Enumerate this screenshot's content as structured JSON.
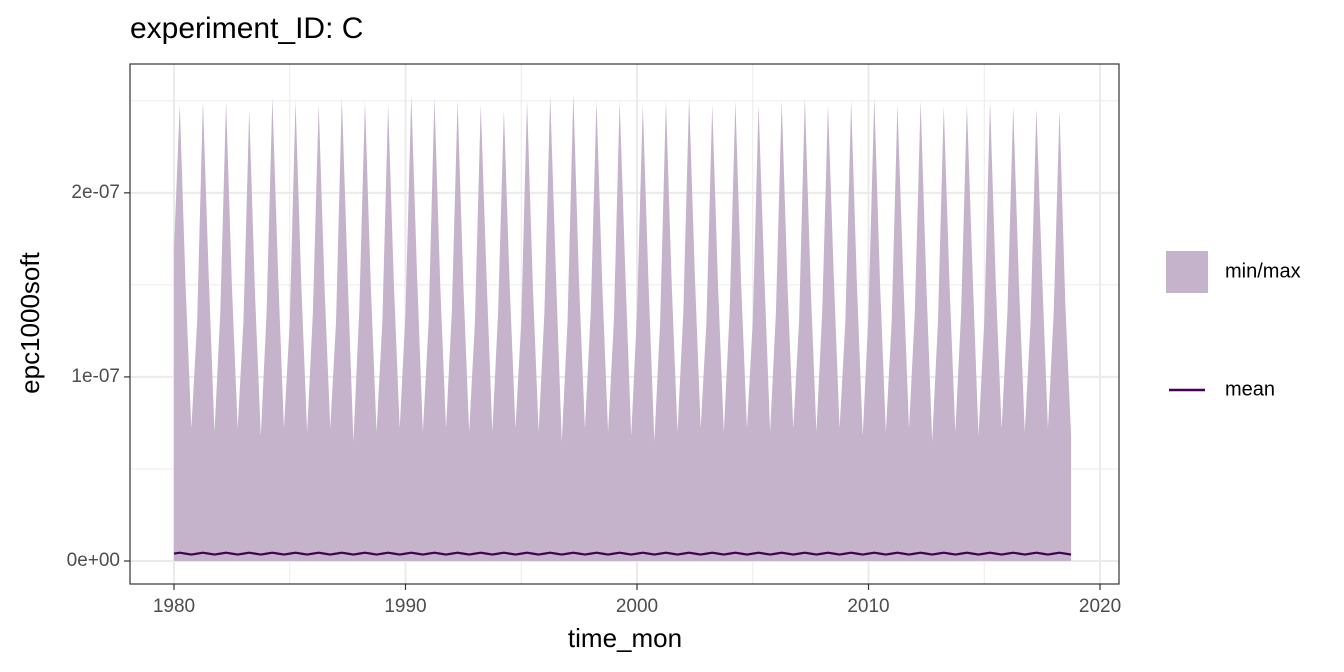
{
  "chart_data": {
    "type": "ribbon-line",
    "title": "experiment_ID: C",
    "x_label": "time_mon",
    "y_label": "epc1000soft",
    "xlim": [
      1978.1,
      2020.82
    ],
    "xticks": [
      1980,
      1990,
      2000,
      2010,
      2020
    ],
    "xminor": [
      1985,
      1995,
      2005,
      2015
    ],
    "ylim": [
      -1.25e-08,
      2.7e-07
    ],
    "yticks": [
      {
        "value": 0,
        "label": "0e+00"
      },
      {
        "value": 1e-07,
        "label": "1e-07"
      },
      {
        "value": 2e-07,
        "label": "2e-07"
      }
    ],
    "yminor": [
      5e-08,
      1.5e-07,
      2.5e-07
    ],
    "grid": true,
    "x": [
      1980,
      1980.25,
      1980.5,
      1980.75,
      1981,
      1981.25,
      1981.5,
      1981.75,
      1982,
      1982.25,
      1982.5,
      1982.75,
      1983,
      1983.25,
      1983.5,
      1983.75,
      1984,
      1984.25,
      1984.5,
      1984.75,
      1985,
      1985.25,
      1985.5,
      1985.75,
      1986,
      1986.25,
      1986.5,
      1986.75,
      1987,
      1987.25,
      1987.5,
      1987.75,
      1988,
      1988.25,
      1988.5,
      1988.75,
      1989,
      1989.25,
      1989.5,
      1989.75,
      1990,
      1990.25,
      1990.5,
      1990.75,
      1991,
      1991.25,
      1991.5,
      1991.75,
      1992,
      1992.25,
      1992.5,
      1992.75,
      1993,
      1993.25,
      1993.5,
      1993.75,
      1994,
      1994.25,
      1994.5,
      1994.75,
      1995,
      1995.25,
      1995.5,
      1995.75,
      1996,
      1996.25,
      1996.5,
      1996.75,
      1997,
      1997.25,
      1997.5,
      1997.75,
      1998,
      1998.25,
      1998.5,
      1998.75,
      1999,
      1999.25,
      1999.5,
      1999.75,
      2000,
      2000.25,
      2000.5,
      2000.75,
      2001,
      2001.25,
      2001.5,
      2001.75,
      2002,
      2002.25,
      2002.5,
      2002.75,
      2003,
      2003.25,
      2003.5,
      2003.75,
      2004,
      2004.25,
      2004.5,
      2004.75,
      2005,
      2005.25,
      2005.5,
      2005.75,
      2006,
      2006.25,
      2006.5,
      2006.75,
      2007,
      2007.25,
      2007.5,
      2007.75,
      2008,
      2008.25,
      2008.5,
      2008.75,
      2009,
      2009.25,
      2009.5,
      2009.75,
      2010,
      2010.25,
      2010.5,
      2010.75,
      2011,
      2011.25,
      2011.5,
      2011.75,
      2012,
      2012.25,
      2012.5,
      2012.75,
      2013,
      2013.25,
      2013.5,
      2013.75,
      2014,
      2014.25,
      2014.5,
      2014.75,
      2015,
      2015.25,
      2015.5,
      2015.75,
      2016,
      2016.25,
      2016.5,
      2016.75,
      2017,
      2017.25,
      2017.5,
      2017.75,
      2018,
      2018.25,
      2018.5,
      2018.75
    ],
    "series": [
      {
        "name": "min/max",
        "kind": "ribbon",
        "color": "#c5b3cc",
        "upper": [
          1.7e-07,
          2.48e-07,
          1.5e-07,
          7.2e-08,
          1.3e-07,
          2.5e-07,
          1.55e-07,
          7e-08,
          1.35e-07,
          2.5e-07,
          1.5e-07,
          7.2e-08,
          1.3e-07,
          2.45e-07,
          1.45e-07,
          6.8e-08,
          1.35e-07,
          2.52e-07,
          1.55e-07,
          7.2e-08,
          1.3e-07,
          2.5e-07,
          1.5e-07,
          7e-08,
          1.35e-07,
          2.48e-07,
          1.5e-07,
          7.2e-08,
          1.3e-07,
          2.52e-07,
          1.55e-07,
          6.5e-08,
          1.35e-07,
          2.5e-07,
          1.5e-07,
          7e-08,
          1.3e-07,
          2.48e-07,
          1.5e-07,
          7.2e-08,
          1.35e-07,
          2.53e-07,
          1.55e-07,
          7e-08,
          1.3e-07,
          2.52e-07,
          1.5e-07,
          7.2e-08,
          1.35e-07,
          2.5e-07,
          1.5e-07,
          7e-08,
          1.3e-07,
          2.48e-07,
          1.55e-07,
          7e-08,
          1.35e-07,
          2.45e-07,
          1.5e-07,
          7.2e-08,
          1.3e-07,
          2.5e-07,
          1.5e-07,
          7e-08,
          1.35e-07,
          2.53e-07,
          1.55e-07,
          6.5e-08,
          1.3e-07,
          2.54e-07,
          1.5e-07,
          7.2e-08,
          1.35e-07,
          2.5e-07,
          1.5e-07,
          7e-08,
          1.3e-07,
          2.5e-07,
          1.55e-07,
          6.8e-08,
          1.35e-07,
          2.48e-07,
          1.5e-07,
          6.5e-08,
          1.3e-07,
          2.5e-07,
          1.5e-07,
          7e-08,
          1.35e-07,
          2.52e-07,
          1.55e-07,
          7.2e-08,
          1.3e-07,
          2.48e-07,
          1.5e-07,
          7e-08,
          1.35e-07,
          2.5e-07,
          1.5e-07,
          7.2e-08,
          1.3e-07,
          2.48e-07,
          1.55e-07,
          7e-08,
          1.35e-07,
          2.5e-07,
          1.5e-07,
          7.2e-08,
          1.3e-07,
          2.52e-07,
          1.5e-07,
          7e-08,
          1.35e-07,
          2.48e-07,
          1.55e-07,
          7.2e-08,
          1.3e-07,
          2.5e-07,
          1.5e-07,
          6.8e-08,
          1.35e-07,
          2.52e-07,
          1.5e-07,
          7e-08,
          1.3e-07,
          2.48e-07,
          1.55e-07,
          7.2e-08,
          1.35e-07,
          2.5e-07,
          1.5e-07,
          6.5e-08,
          1.3e-07,
          2.47e-07,
          1.5e-07,
          7e-08,
          1.35e-07,
          2.48e-07,
          1.55e-07,
          6.8e-08,
          1.3e-07,
          2.5e-07,
          1.5e-07,
          7.2e-08,
          1.35e-07,
          2.47e-07,
          1.5e-07,
          7e-08,
          1.3e-07,
          2.46e-07,
          1.55e-07,
          7.2e-08,
          1.35e-07,
          2.45e-07,
          1.4e-07,
          6.8e-08
        ],
        "lower": [
          0,
          0,
          0,
          0,
          0,
          0,
          0,
          0,
          0,
          0,
          0,
          0,
          0,
          0,
          0,
          0,
          0,
          0,
          0,
          0,
          0,
          0,
          0,
          0,
          0,
          0,
          0,
          0,
          0,
          0,
          0,
          0,
          0,
          0,
          0,
          0,
          0,
          0,
          0,
          0,
          0,
          0,
          0,
          0,
          0,
          0,
          0,
          0,
          0,
          0,
          0,
          0,
          0,
          0,
          0,
          0,
          0,
          0,
          0,
          0,
          0,
          0,
          0,
          0,
          0,
          0,
          0,
          0,
          0,
          0,
          0,
          0,
          0,
          0,
          0,
          0,
          0,
          0,
          0,
          0,
          0,
          0,
          0,
          0,
          0,
          0,
          0,
          0,
          0,
          0,
          0,
          0,
          0,
          0,
          0,
          0,
          0,
          0,
          0,
          0,
          0,
          0,
          0,
          0,
          0,
          0,
          0,
          0,
          0,
          0,
          0,
          0,
          0,
          0,
          0,
          0,
          0,
          0,
          0,
          0,
          0,
          0,
          0,
          0,
          0,
          0,
          0,
          0,
          0,
          0,
          0,
          0,
          0,
          0,
          0,
          0,
          0,
          0,
          0,
          0,
          0,
          0,
          0,
          0,
          0,
          0,
          0,
          0,
          0,
          0,
          0,
          0,
          0,
          0,
          0,
          0
        ]
      },
      {
        "name": "mean",
        "kind": "line",
        "color": "#440154",
        "values": [
          4e-09,
          4.5e-09,
          4e-09,
          3.5e-09,
          4e-09,
          4.5e-09,
          4e-09,
          3.5e-09,
          4e-09,
          4.5e-09,
          4e-09,
          3.5e-09,
          4e-09,
          4.5e-09,
          4e-09,
          3.5e-09,
          4e-09,
          4.5e-09,
          4e-09,
          3.5e-09,
          4e-09,
          4.5e-09,
          4e-09,
          3.5e-09,
          4e-09,
          4.5e-09,
          4e-09,
          3.5e-09,
          4e-09,
          4.5e-09,
          4e-09,
          3.5e-09,
          4e-09,
          4.5e-09,
          4e-09,
          3.5e-09,
          4e-09,
          4.5e-09,
          4e-09,
          3.5e-09,
          4e-09,
          4.5e-09,
          4e-09,
          3.5e-09,
          4e-09,
          4.5e-09,
          4e-09,
          3.5e-09,
          4e-09,
          4.5e-09,
          4e-09,
          3.5e-09,
          4e-09,
          4.5e-09,
          4e-09,
          3.5e-09,
          4e-09,
          4.5e-09,
          4e-09,
          3.5e-09,
          4e-09,
          4.5e-09,
          4e-09,
          3.5e-09,
          4e-09,
          4.5e-09,
          4e-09,
          3.5e-09,
          4e-09,
          4.5e-09,
          4e-09,
          3.5e-09,
          4e-09,
          4.5e-09,
          4e-09,
          3.5e-09,
          4e-09,
          4.5e-09,
          4e-09,
          3.5e-09,
          4e-09,
          4.5e-09,
          4e-09,
          3.5e-09,
          4e-09,
          4.5e-09,
          4e-09,
          3.5e-09,
          4e-09,
          4.5e-09,
          4e-09,
          3.5e-09,
          4e-09,
          4.5e-09,
          4e-09,
          3.5e-09,
          4e-09,
          4.5e-09,
          4e-09,
          3.5e-09,
          4e-09,
          4.5e-09,
          4e-09,
          3.5e-09,
          4e-09,
          4.5e-09,
          4e-09,
          3.5e-09,
          4e-09,
          4.5e-09,
          4e-09,
          3.5e-09,
          4e-09,
          4.5e-09,
          4e-09,
          3.5e-09,
          4e-09,
          4.5e-09,
          4e-09,
          3.5e-09,
          4e-09,
          4.5e-09,
          4e-09,
          3.5e-09,
          4e-09,
          4.5e-09,
          4e-09,
          3.5e-09,
          4e-09,
          4.5e-09,
          4e-09,
          3.5e-09,
          4e-09,
          4.5e-09,
          4e-09,
          3.5e-09,
          4e-09,
          4.5e-09,
          4e-09,
          3.5e-09,
          4e-09,
          4.5e-09,
          4e-09,
          3.5e-09,
          4e-09,
          4.5e-09,
          4e-09,
          3.5e-09,
          4e-09,
          4.5e-09,
          4e-09,
          3.5e-09,
          4e-09,
          4.5e-09,
          4e-09,
          3.5e-09
        ]
      }
    ]
  }
}
